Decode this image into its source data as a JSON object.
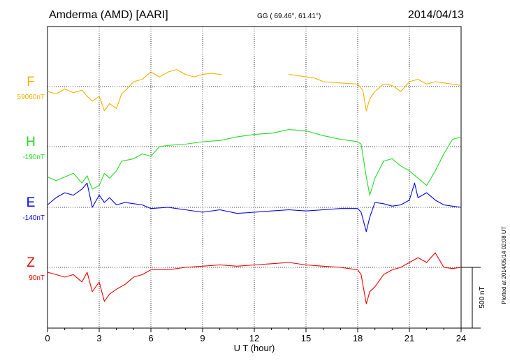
{
  "header": {
    "station": "Amderma (AMD)  [AARI]",
    "coords": "GG ( 69.46°,  61.41°)",
    "date": "2014/04/13"
  },
  "footer": {
    "plotted": "Plotted at 2014/05/14 02:08 UT",
    "scale_label": "500 nT"
  },
  "chart_data": {
    "type": "line",
    "xlabel": "U T (hour)",
    "xlim": [
      0,
      24
    ],
    "xticks": [
      "0",
      "3",
      "6",
      "9",
      "12",
      "15",
      "18",
      "21",
      "24"
    ],
    "scale_nT": 500,
    "grid": true,
    "series": [
      {
        "name": "F",
        "baseline_label": "59060nT",
        "color": "#f2b100",
        "points": [
          [
            0,
            -40
          ],
          [
            0.5,
            -60
          ],
          [
            1,
            -20
          ],
          [
            1.5,
            -50
          ],
          [
            2,
            -30
          ],
          [
            2.3,
            -80
          ],
          [
            2.6,
            -120
          ],
          [
            3,
            -80
          ],
          [
            3.3,
            -200
          ],
          [
            3.6,
            -140
          ],
          [
            4,
            -180
          ],
          [
            4.3,
            -60
          ],
          [
            4.6,
            -20
          ],
          [
            5,
            40
          ],
          [
            5.5,
            60
          ],
          [
            6,
            120
          ],
          [
            6.5,
            80
          ],
          [
            7,
            120
          ],
          [
            7.5,
            140
          ],
          [
            8,
            100
          ],
          [
            8.5,
            80
          ],
          [
            9,
            100
          ],
          [
            9.5,
            110
          ],
          [
            10,
            100
          ],
          [
            10.1,
            100
          ],
          [
            null,
            null
          ],
          [
            14,
            100
          ],
          [
            14.5,
            90
          ],
          [
            15,
            80
          ],
          [
            15.5,
            70
          ],
          [
            16,
            40
          ],
          [
            17,
            30
          ],
          [
            18,
            20
          ],
          [
            18.3,
            -30
          ],
          [
            18.5,
            -200
          ],
          [
            18.7,
            -100
          ],
          [
            19,
            -40
          ],
          [
            19.5,
            20
          ],
          [
            20,
            10
          ],
          [
            20.5,
            -40
          ],
          [
            21,
            40
          ],
          [
            21.5,
            60
          ],
          [
            22,
            20
          ],
          [
            22.5,
            40
          ],
          [
            23,
            30
          ],
          [
            23.5,
            20
          ],
          [
            24,
            10
          ]
        ]
      },
      {
        "name": "H",
        "baseline_label": "-190nT",
        "color": "#22dd22",
        "points": [
          [
            0,
            -250
          ],
          [
            0.5,
            -280
          ],
          [
            1,
            -250
          ],
          [
            1.5,
            -220
          ],
          [
            2,
            -300
          ],
          [
            2.3,
            -240
          ],
          [
            2.6,
            -350
          ],
          [
            3,
            -320
          ],
          [
            3.3,
            -220
          ],
          [
            3.6,
            -260
          ],
          [
            4,
            -200
          ],
          [
            4.3,
            -120
          ],
          [
            5,
            -100
          ],
          [
            5.5,
            -60
          ],
          [
            6,
            -80
          ],
          [
            6.5,
            0
          ],
          [
            7,
            10
          ],
          [
            8,
            20
          ],
          [
            9,
            40
          ],
          [
            10,
            50
          ],
          [
            11,
            80
          ],
          [
            12,
            100
          ],
          [
            13,
            110
          ],
          [
            14,
            140
          ],
          [
            15,
            130
          ],
          [
            16,
            90
          ],
          [
            17,
            60
          ],
          [
            18,
            40
          ],
          [
            18.2,
            20
          ],
          [
            18.5,
            -250
          ],
          [
            18.7,
            -400
          ],
          [
            19,
            -260
          ],
          [
            19.5,
            -120
          ],
          [
            20,
            -100
          ],
          [
            20.5,
            -160
          ],
          [
            21,
            -200
          ],
          [
            21.5,
            -260
          ],
          [
            22,
            -320
          ],
          [
            22.5,
            -200
          ],
          [
            23,
            -60
          ],
          [
            23.5,
            60
          ],
          [
            24,
            80
          ]
        ]
      },
      {
        "name": "E",
        "baseline_label": "-140nT",
        "color": "#0000ee",
        "points": [
          [
            0,
            20
          ],
          [
            0.5,
            80
          ],
          [
            1,
            120
          ],
          [
            1.5,
            100
          ],
          [
            2,
            150
          ],
          [
            2.3,
            200
          ],
          [
            2.6,
            0
          ],
          [
            3,
            100
          ],
          [
            3.3,
            40
          ],
          [
            3.6,
            80
          ],
          [
            4,
            20
          ],
          [
            4.5,
            40
          ],
          [
            5,
            30
          ],
          [
            5.5,
            20
          ],
          [
            6,
            -10
          ],
          [
            7,
            0
          ],
          [
            8,
            -20
          ],
          [
            9,
            -40
          ],
          [
            10,
            -20
          ],
          [
            11,
            -50
          ],
          [
            12,
            -40
          ],
          [
            13,
            -30
          ],
          [
            14,
            -20
          ],
          [
            15,
            -30
          ],
          [
            16,
            -20
          ],
          [
            17,
            -10
          ],
          [
            18,
            -10
          ],
          [
            18.2,
            -40
          ],
          [
            18.5,
            -200
          ],
          [
            18.7,
            -80
          ],
          [
            19,
            40
          ],
          [
            19.5,
            30
          ],
          [
            20,
            10
          ],
          [
            20.5,
            20
          ],
          [
            21,
            60
          ],
          [
            21.3,
            200
          ],
          [
            21.5,
            80
          ],
          [
            22,
            120
          ],
          [
            22.5,
            60
          ],
          [
            23,
            20
          ],
          [
            23.5,
            10
          ],
          [
            24,
            0
          ]
        ]
      },
      {
        "name": "Z",
        "baseline_label": "90nT",
        "color": "#ee0000",
        "points": [
          [
            0,
            -40
          ],
          [
            0.5,
            -60
          ],
          [
            1,
            -80
          ],
          [
            1.5,
            -60
          ],
          [
            2,
            -120
          ],
          [
            2.3,
            -40
          ],
          [
            2.6,
            -200
          ],
          [
            3,
            -120
          ],
          [
            3.3,
            -280
          ],
          [
            3.6,
            -220
          ],
          [
            4,
            -180
          ],
          [
            4.5,
            -140
          ],
          [
            5,
            -80
          ],
          [
            5.5,
            -60
          ],
          [
            6,
            -20
          ],
          [
            7,
            -20
          ],
          [
            8,
            0
          ],
          [
            9,
            10
          ],
          [
            10,
            20
          ],
          [
            11,
            10
          ],
          [
            12,
            20
          ],
          [
            13,
            30
          ],
          [
            14,
            40
          ],
          [
            15,
            20
          ],
          [
            16,
            10
          ],
          [
            17,
            0
          ],
          [
            18,
            -20
          ],
          [
            18.2,
            -60
          ],
          [
            18.5,
            -300
          ],
          [
            18.7,
            -200
          ],
          [
            19,
            -160
          ],
          [
            19.5,
            -60
          ],
          [
            20,
            -20
          ],
          [
            20.5,
            0
          ],
          [
            21,
            40
          ],
          [
            21.5,
            80
          ],
          [
            22,
            40
          ],
          [
            22.5,
            120
          ],
          [
            23,
            0
          ],
          [
            23.5,
            -10
          ],
          [
            24,
            0
          ]
        ]
      }
    ]
  }
}
